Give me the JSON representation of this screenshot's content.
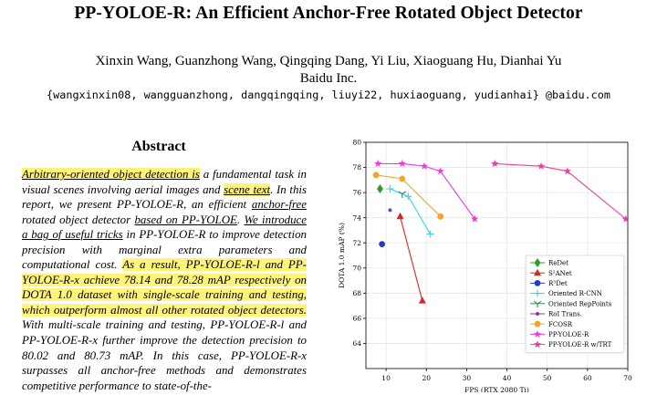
{
  "paper": {
    "title": "PP-YOLOE-R: An Efficient Anchor-Free Rotated Object Detector",
    "authors": "Xinxin Wang, Guanzhong Wang, Qingqing Dang, Yi Liu, Xiaoguang Hu, Dianhai Yu",
    "affiliation": "Baidu Inc.",
    "emails": "{wangxinxin08, wangguanzhong, dangqingqing, liuyi22, huxiaoguang, yudianhai} @baidu.com",
    "abstract_heading": "Abstract",
    "abstract": {
      "s1": "Arbitrary-oriented object detection is",
      "s2": " a fundamental task in visual scenes involving aerial images and ",
      "s3": "scene text",
      "s4": ". In this report, we present PP-YOLOE-R, an efficient ",
      "s5": "anchor-free",
      "s6": " rotated object detector ",
      "s7": "based on PP-YOLOE",
      "s8": ". ",
      "s9": "We introduce a bag of useful tricks",
      "s10": " in PP-YOLOE-R to improve detection precision with marginal extra parameters and computational cost. ",
      "s11": "As a result, PP-YOLOE-R-l and PP-YOLOE-R-x achieve 78.14 and 78.28 mAP respectively on DOTA 1.0 dataset with single-scale training and testing, which outperform almost all other rotated object detectors.",
      "s12": " With multi-scale training and testing, PP-YOLOE-R-l and PP-YOLOE-R-x further improve the detection precision to 80.02 and 80.73 mAP. In this case, PP-YOLOE-R-x surpasses all anchor-free methods and demonstrates competitive performance to state-of-the-"
    },
    "highlight_color": "#fff37a"
  },
  "chart_data": {
    "type": "scatter",
    "xlabel": "FPS (RTX 2080 Ti)",
    "ylabel": "DOTA 1.0 mAP (%)",
    "xlim": [
      5,
      70
    ],
    "ylim": [
      62,
      80
    ],
    "xticks": [
      10,
      20,
      30,
      40,
      50,
      60,
      70
    ],
    "yticks": [
      64,
      66,
      68,
      70,
      72,
      74,
      76,
      78,
      80
    ],
    "grid": true,
    "legend_position": "bottom-right",
    "series": [
      {
        "name": "ReDet",
        "marker": "diamond",
        "color": "#2ca02c",
        "points": [
          [
            8.5,
            76.3
          ]
        ]
      },
      {
        "name": "S²ANet",
        "marker": "triangle",
        "color": "#d62728",
        "points": [
          [
            13.5,
            74.1
          ],
          [
            19.0,
            67.4
          ]
        ]
      },
      {
        "name": "R³Det",
        "marker": "circle",
        "color": "#1f3fbf",
        "points": [
          [
            9.0,
            71.9
          ]
        ]
      },
      {
        "name": "Oriented R-CNN",
        "marker": "plus",
        "color": "#33d6e0",
        "points": [
          [
            11.0,
            76.3
          ],
          [
            15.5,
            75.7
          ],
          [
            21.0,
            72.7
          ]
        ]
      },
      {
        "name": "Oriented RepPoints",
        "marker": "tri_down",
        "color": "#2e8b57",
        "points": [
          [
            14.0,
            75.9
          ]
        ]
      },
      {
        "name": "RoI Trans.",
        "marker": "circle_small",
        "color": "#7b3f9e",
        "points": [
          [
            11.0,
            74.6
          ]
        ]
      },
      {
        "name": "FCOSR",
        "marker": "circle",
        "color": "#f5a623",
        "points": [
          [
            7.5,
            77.4
          ],
          [
            14.0,
            77.1
          ],
          [
            23.5,
            74.1
          ]
        ]
      },
      {
        "name": "PP-YOLOE-R",
        "marker": "star",
        "color": "#e83fd9",
        "points": [
          [
            8.0,
            78.3
          ],
          [
            14.0,
            78.3
          ],
          [
            19.5,
            78.1
          ],
          [
            23.5,
            77.7
          ],
          [
            32.0,
            73.9
          ]
        ]
      },
      {
        "name": "PP-YOLOE-R w/TRT",
        "marker": "star",
        "color": "#e83fa6",
        "points": [
          [
            37.0,
            78.3
          ],
          [
            48.5,
            78.1
          ],
          [
            55.0,
            77.7
          ],
          [
            69.5,
            73.9
          ]
        ]
      }
    ]
  }
}
